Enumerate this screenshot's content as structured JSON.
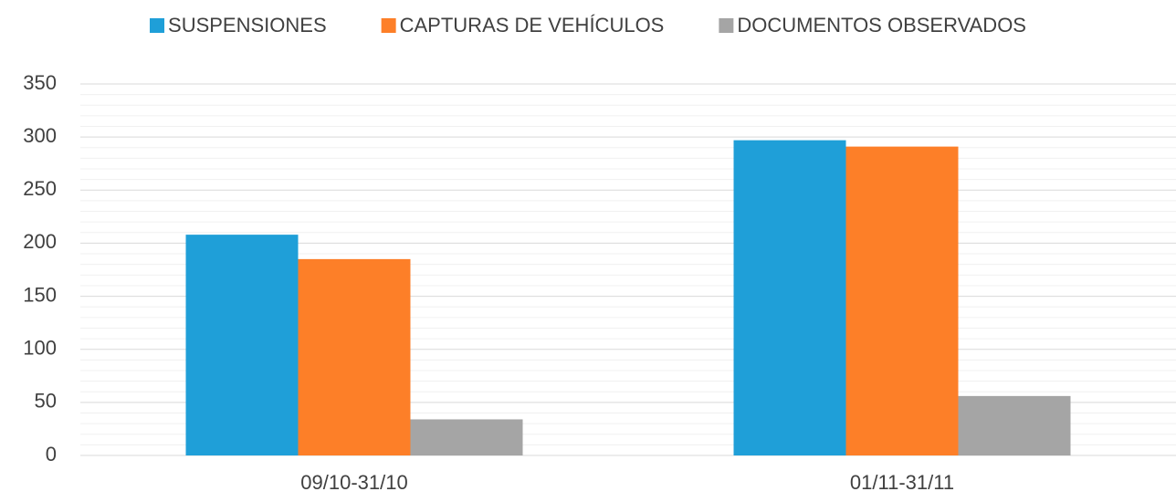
{
  "chart_data": {
    "type": "bar",
    "categories": [
      "09/10-31/10",
      "01/11-31/11"
    ],
    "series": [
      {
        "name": "SUSPENSIONES",
        "color": "#1f9fd8",
        "values": [
          208,
          297
        ]
      },
      {
        "name": "CAPTURAS DE VEHÍCULOS",
        "color": "#fd7f28",
        "values": [
          185,
          291
        ]
      },
      {
        "name": "DOCUMENTOS OBSERVADOS",
        "color": "#a5a5a5",
        "values": [
          34,
          56
        ]
      }
    ],
    "ylim": [
      0,
      350
    ],
    "yticks": [
      0,
      50,
      100,
      150,
      200,
      250,
      300,
      350
    ],
    "yminorticks": [
      10,
      20,
      30,
      40,
      60,
      70,
      80,
      90,
      110,
      120,
      130,
      140,
      160,
      170,
      180,
      190,
      210,
      220,
      230,
      240,
      260,
      270,
      280,
      290,
      310,
      320,
      330,
      340
    ],
    "grid": true,
    "legend": "top"
  }
}
